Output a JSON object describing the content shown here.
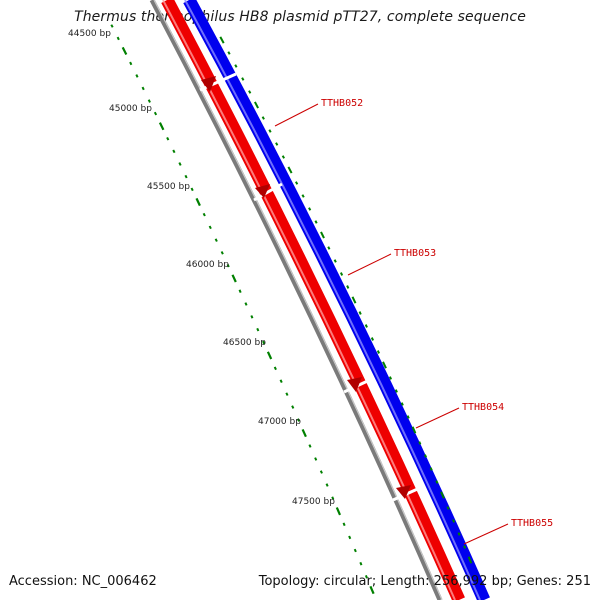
{
  "title": "Thermus thermophilus HB8 plasmid pTT27, complete sequence",
  "accession": "Accession: NC_006462",
  "topology": "Topology: circular; Length: 256,992 bp; Genes: 251",
  "colors": {
    "forward_strand": "#0000ee",
    "reverse_strand": "#ee0000",
    "backbone": "#808080",
    "ticks": "#008000",
    "gene_label": "#cc0000"
  },
  "ruler": {
    "labels": [
      "44500 bp",
      "45000 bp",
      "45500 bp",
      "46000 bp",
      "46500 bp",
      "47000 bp",
      "47500 bp"
    ]
  },
  "genes": [
    {
      "label": "TTHB052"
    },
    {
      "label": "TTHB053"
    },
    {
      "label": "TTHB054"
    },
    {
      "label": "TTHB055"
    }
  ]
}
